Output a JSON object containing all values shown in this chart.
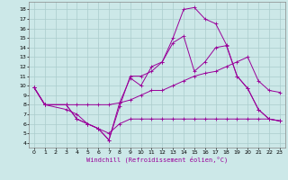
{
  "xlabel": "Windchill (Refroidissement éolien,°C)",
  "xlim": [
    -0.5,
    23.5
  ],
  "ylim": [
    3.5,
    18.8
  ],
  "xticks": [
    0,
    1,
    2,
    3,
    4,
    5,
    6,
    7,
    8,
    9,
    10,
    11,
    12,
    13,
    14,
    15,
    16,
    17,
    18,
    19,
    20,
    21,
    22,
    23
  ],
  "yticks": [
    4,
    5,
    6,
    7,
    8,
    9,
    10,
    11,
    12,
    13,
    14,
    15,
    16,
    17,
    18
  ],
  "bg_color": "#cce8e8",
  "grid_color": "#aacccc",
  "line_color": "#990099",
  "series": [
    {
      "x": [
        0,
        1,
        3,
        4,
        5,
        6,
        7,
        8,
        9,
        10,
        11,
        12,
        13,
        14,
        15,
        16,
        17,
        18,
        19,
        20,
        21,
        22,
        23
      ],
      "y": [
        9.8,
        8.0,
        8.0,
        6.5,
        6.0,
        5.5,
        4.3,
        7.8,
        11.0,
        11.0,
        11.5,
        12.5,
        15.0,
        18.0,
        18.2,
        17.0,
        16.5,
        14.3,
        11.0,
        9.7,
        7.5,
        6.5,
        6.3
      ]
    },
    {
      "x": [
        0,
        1,
        3,
        4,
        5,
        6,
        7,
        8,
        9,
        10,
        11,
        12,
        13,
        14,
        15,
        16,
        17,
        18,
        19,
        20,
        21,
        22,
        23
      ],
      "y": [
        9.8,
        8.0,
        8.0,
        6.5,
        6.0,
        5.5,
        4.3,
        8.2,
        10.8,
        10.0,
        12.0,
        12.5,
        14.5,
        15.2,
        11.5,
        12.5,
        14.0,
        14.2,
        11.0,
        9.7,
        7.5,
        6.5,
        6.3
      ]
    },
    {
      "x": [
        0,
        1,
        3,
        4,
        5,
        6,
        7,
        8,
        9,
        10,
        11,
        12,
        13,
        14,
        15,
        16,
        17,
        18,
        19,
        20,
        21,
        22,
        23
      ],
      "y": [
        9.8,
        8.0,
        8.0,
        8.0,
        8.0,
        8.0,
        8.0,
        8.2,
        8.5,
        9.0,
        9.5,
        9.5,
        10.0,
        10.5,
        11.0,
        11.3,
        11.5,
        12.0,
        12.5,
        13.0,
        10.5,
        9.5,
        9.3
      ]
    },
    {
      "x": [
        0,
        1,
        3,
        4,
        5,
        6,
        7,
        8,
        9,
        10,
        11,
        12,
        13,
        14,
        15,
        16,
        17,
        18,
        19,
        20,
        21,
        22,
        23
      ],
      "y": [
        9.8,
        8.0,
        7.5,
        7.0,
        6.0,
        5.5,
        5.0,
        6.0,
        6.5,
        6.5,
        6.5,
        6.5,
        6.5,
        6.5,
        6.5,
        6.5,
        6.5,
        6.5,
        6.5,
        6.5,
        6.5,
        6.5,
        6.3
      ]
    }
  ]
}
